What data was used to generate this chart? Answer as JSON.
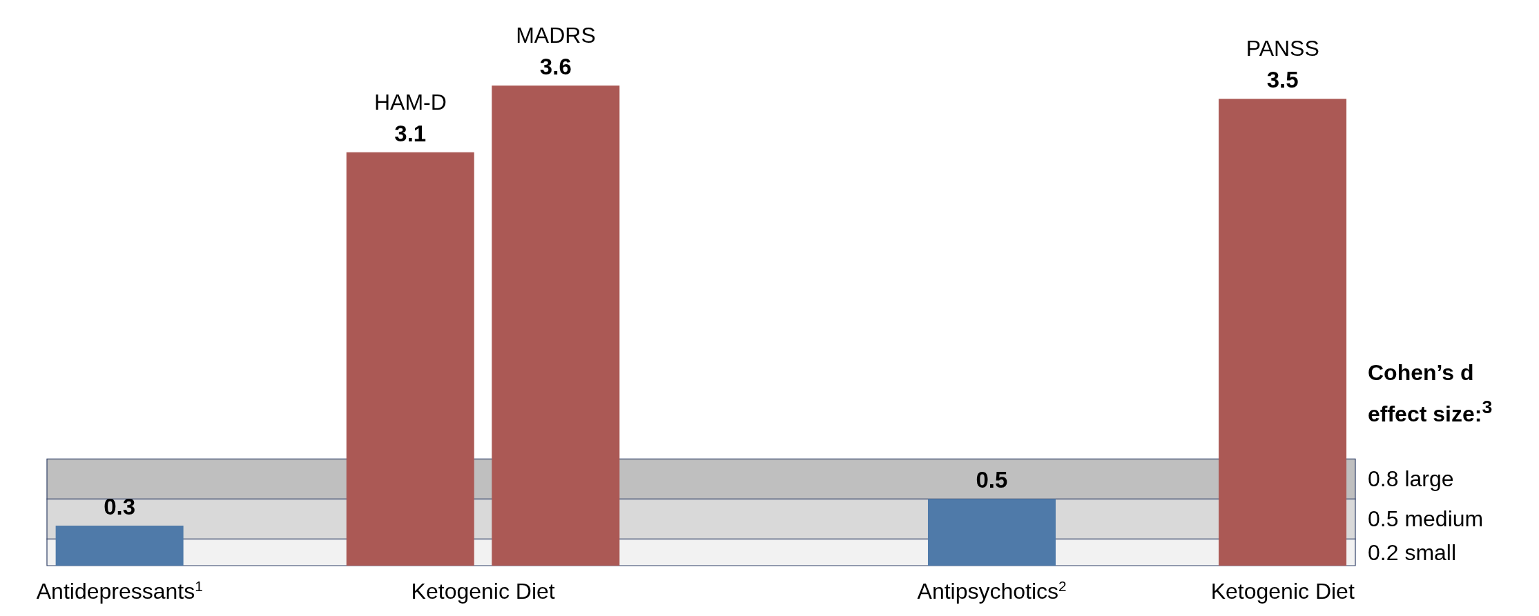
{
  "chart_data": {
    "type": "bar",
    "categories": [
      "Antidepressants$^{1}$",
      null,
      "Ketogenic Diet",
      null,
      null,
      null,
      "Antipsychotics$^{2}$",
      null,
      "Ketogenic Diet"
    ],
    "values": [
      0.3,
      null,
      3.1,
      3.6,
      null,
      null,
      0.5,
      null,
      3.5
    ],
    "colors": [
      "#4f7aa9",
      null,
      "#ab5955",
      "#ab5955",
      null,
      null,
      "#4f7aa9",
      null,
      "#ab5955"
    ],
    "data_labels": true,
    "ylim": [
      0,
      4.2
    ],
    "tick_labels": "x",
    "grid": false,
    "legend": false,
    "bands": [
      {
        "axis": "y",
        "from": 0,
        "to": 0.2,
        "label": "0.2 small",
        "color": "#f2f2f2"
      },
      {
        "axis": "y",
        "from": 0.2,
        "to": 0.5,
        "label": "0.5 medium",
        "color": "#d9d9d9"
      },
      {
        "axis": "y",
        "from": 0.5,
        "to": 0.8,
        "label": "0.8 large",
        "color": "#bfbfbf"
      }
    ],
    "annotations": [
      {
        "text": "HAM-D",
        "y": 3.1
      },
      {
        "text": "MADRS",
        "y": 3.6
      },
      {
        "text": "PANSS",
        "y": 3.5
      },
      "Cohen’s d effect size:$^{3}$"
    ]
  }
}
